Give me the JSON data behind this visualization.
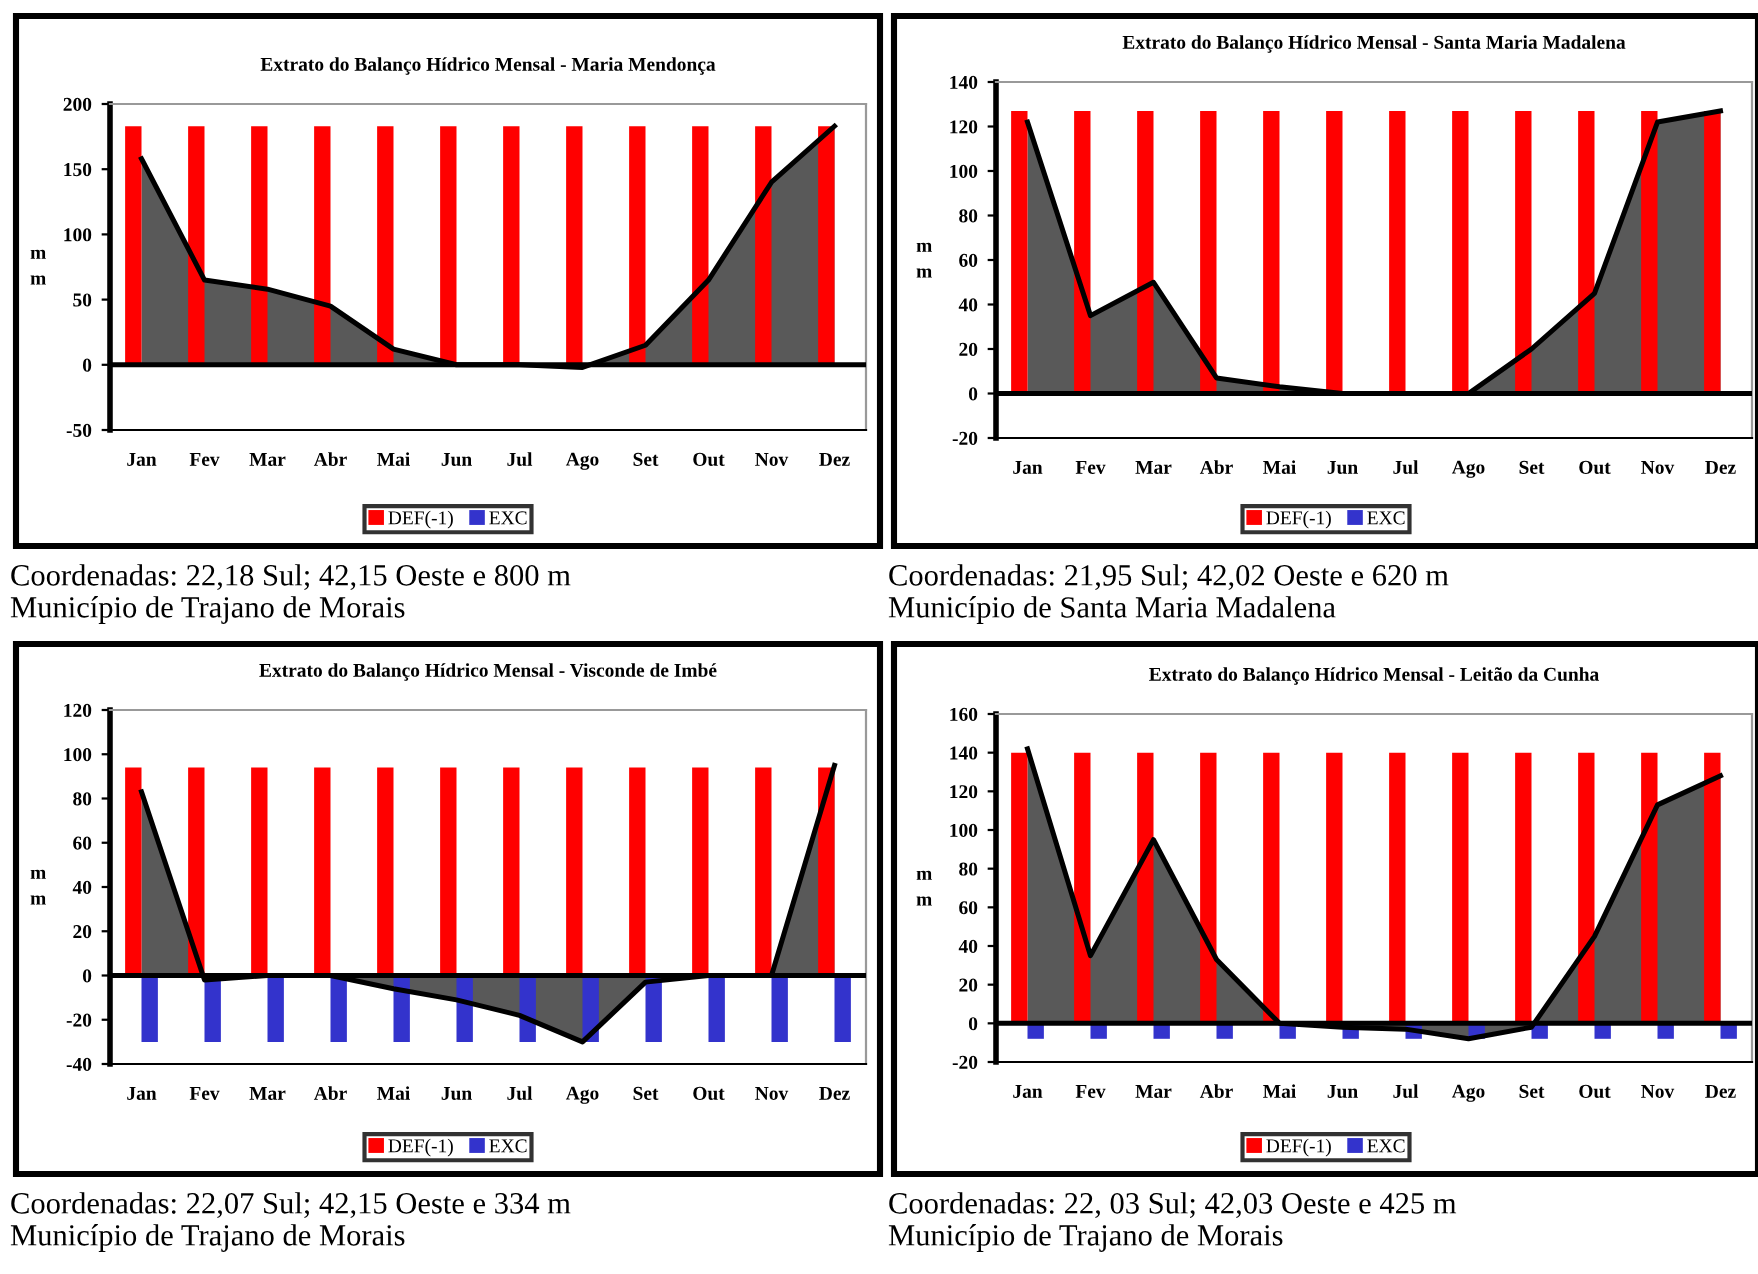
{
  "chart_data": [
    {
      "type": "bar",
      "title": "Extrato do Balanço Hídrico Mensal - Maria Mendonça",
      "ylabel": "m\nm",
      "categories": [
        "Jan",
        "Fev",
        "Mar",
        "Abr",
        "Mai",
        "Jun",
        "Jul",
        "Ago",
        "Set",
        "Out",
        "Nov",
        "Dez"
      ],
      "ylim": [
        -50,
        200
      ],
      "yticks": [
        -50,
        0,
        50,
        100,
        150,
        200
      ],
      "grid": false,
      "ref_lines": [
        {
          "axis": "y",
          "value": 0,
          "color": "#000000"
        }
      ],
      "legend": "bottom",
      "series": [
        {
          "name": "DEF(-1)",
          "color": "#ff0000",
          "values": [
            183,
            183,
            183,
            183,
            183,
            183,
            183,
            183,
            183,
            183,
            183,
            183
          ]
        },
        {
          "name": "EXC",
          "color": "#3333cc",
          "values": [
            0,
            0,
            0,
            0,
            0,
            0,
            0,
            0,
            0,
            0,
            0,
            0
          ]
        },
        {
          "type": "area",
          "color": "#222222",
          "values": [
            158,
            65,
            58,
            45,
            12,
            0,
            0,
            -2,
            15,
            65,
            140,
            183
          ]
        }
      ],
      "annotations": [
        "Coordenadas: 22,18 Sul; 42,15 Oeste e 800 m",
        "Município de Trajano de Morais"
      ]
    },
    {
      "type": "bar",
      "title": "Extrato do Balanço Hídrico Mensal - Santa Maria Madalena",
      "ylabel": "m\nm",
      "categories": [
        "Jan",
        "Fev",
        "Mar",
        "Abr",
        "Mai",
        "Jun",
        "Jul",
        "Ago",
        "Set",
        "Out",
        "Nov",
        "Dez"
      ],
      "ylim": [
        -20,
        140
      ],
      "yticks": [
        -20,
        0,
        20,
        40,
        60,
        80,
        100,
        120,
        140
      ],
      "grid": false,
      "ref_lines": [
        {
          "axis": "y",
          "value": 0,
          "color": "#000000"
        }
      ],
      "legend": "bottom",
      "series": [
        {
          "name": "DEF(-1)",
          "color": "#ff0000",
          "values": [
            127,
            127,
            127,
            127,
            127,
            127,
            127,
            127,
            127,
            127,
            127,
            127
          ]
        },
        {
          "name": "EXC",
          "color": "#3333cc",
          "values": [
            0,
            0,
            0,
            0,
            0,
            0,
            0,
            0,
            0,
            0,
            0,
            0
          ]
        },
        {
          "type": "area",
          "color": "#222222",
          "values": [
            122,
            35,
            50,
            7,
            3,
            0,
            0,
            0,
            20,
            45,
            122,
            127
          ]
        }
      ],
      "annotations": [
        "Coordenadas: 21,95 Sul; 42,02 Oeste e 620 m",
        "Município de Santa Maria Madalena"
      ]
    },
    {
      "type": "bar",
      "title": "Extrato do Balanço Hídrico Mensal - Visconde de Imbé",
      "ylabel": "m\nm",
      "categories": [
        "Jan",
        "Fev",
        "Mar",
        "Abr",
        "Mai",
        "Jun",
        "Jul",
        "Ago",
        "Set",
        "Out",
        "Nov",
        "Dez"
      ],
      "ylim": [
        -40,
        120
      ],
      "yticks": [
        -40,
        -20,
        0,
        20,
        40,
        60,
        80,
        100,
        120
      ],
      "grid": false,
      "ref_lines": [
        {
          "axis": "y",
          "value": 0,
          "color": "#000000"
        }
      ],
      "legend": "bottom",
      "series": [
        {
          "name": "DEF(-1)",
          "color": "#ff0000",
          "values": [
            94,
            94,
            94,
            94,
            94,
            94,
            94,
            94,
            94,
            94,
            94,
            94
          ]
        },
        {
          "name": "EXC",
          "color": "#3333cc",
          "values": [
            -30,
            -30,
            -30,
            -30,
            -30,
            -30,
            -30,
            -30,
            -30,
            -30,
            -30,
            -30
          ]
        },
        {
          "type": "area",
          "color": "#222222",
          "values": [
            83,
            -2,
            0,
            0,
            -6,
            -11,
            -18,
            -30,
            -3,
            0,
            0,
            95
          ]
        }
      ],
      "annotations": [
        "Coordenadas: 22,07 Sul; 42,15 Oeste e 334 m",
        "Município de Trajano de Morais"
      ]
    },
    {
      "type": "bar",
      "title": "Extrato do Balanço Hídrico Mensal - Leitão da Cunha",
      "ylabel": "m\nm",
      "categories": [
        "Jan",
        "Fev",
        "Mar",
        "Abr",
        "Mai",
        "Jun",
        "Jul",
        "Ago",
        "Set",
        "Out",
        "Nov",
        "Dez"
      ],
      "ylim": [
        -20,
        160
      ],
      "yticks": [
        -20,
        0,
        20,
        40,
        60,
        80,
        100,
        120,
        140,
        160
      ],
      "grid": false,
      "ref_lines": [
        {
          "axis": "y",
          "value": 0,
          "color": "#000000"
        }
      ],
      "legend": "bottom",
      "series": [
        {
          "name": "DEF(-1)",
          "color": "#ff0000",
          "values": [
            140,
            140,
            140,
            140,
            140,
            140,
            140,
            140,
            140,
            140,
            140,
            140
          ]
        },
        {
          "name": "EXC",
          "color": "#3333cc",
          "values": [
            -8,
            -8,
            -8,
            -8,
            -8,
            -8,
            -8,
            -8,
            -8,
            -8,
            -8,
            -8
          ]
        },
        {
          "type": "area",
          "color": "#222222",
          "values": [
            142,
            35,
            95,
            33,
            0,
            -2,
            -3,
            -8,
            -2,
            45,
            113,
            128
          ]
        }
      ],
      "annotations": [
        "Coordenadas: 22, 03 Sul; 42,03 Oeste e 425 m",
        "Município de Trajano de Morais"
      ]
    }
  ]
}
